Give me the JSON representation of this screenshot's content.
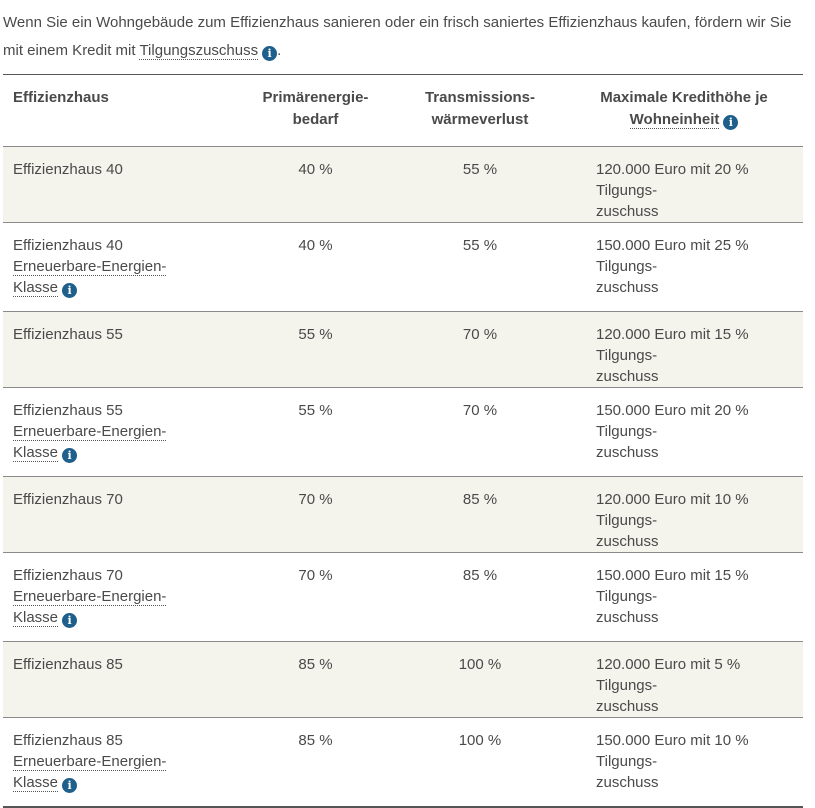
{
  "intro": {
    "text_before": "Wenn Sie ein Wohngebäude zum Effizienzhaus sanieren oder ein frisch saniertes Effizienzhaus kaufen, fördern wir Sie mit einem Kredit mit",
    "link_term": "Tilgungszuschuss",
    "text_after": "."
  },
  "table": {
    "headers": {
      "effizienzhaus": "Effizienzhaus",
      "primaer_line1": "Primärenergie-",
      "primaer_line2": "bedarf",
      "trans_line1": "Transmissions-",
      "trans_line2": "wärmeverlust",
      "kredit_line1": "Maximale Kredithöhe je",
      "kredit_term": "Wohneinheit"
    },
    "ee_label_line1": "Erneuerbare-Energien-",
    "ee_label_line2": "Klasse",
    "rows": [
      {
        "name": "Effizienzhaus 40",
        "primaer": "40 %",
        "trans": "55 %",
        "kredit_line1": "120.000 Euro mit 20 % Tilgungs-",
        "kredit_line2": "zuschuss"
      },
      {
        "name": "Effizienzhaus 40",
        "primaer": "40 %",
        "trans": "55 %",
        "kredit_line1": "150.000 Euro mit 25 % Tilgungs-",
        "kredit_line2": "zuschuss"
      },
      {
        "name": "Effizienzhaus 55",
        "primaer": "55 %",
        "trans": "70 %",
        "kredit_line1": "120.000 Euro mit 15 % Tilgungs-",
        "kredit_line2": "zuschuss"
      },
      {
        "name": "Effizienzhaus 55",
        "primaer": "55 %",
        "trans": "70 %",
        "kredit_line1": "150.000 Euro mit 20 % Tilgungs-",
        "kredit_line2": "zuschuss"
      },
      {
        "name": "Effizienzhaus 70",
        "primaer": "70 %",
        "trans": "85 %",
        "kredit_line1": "120.000 Euro mit 10 % Tilgungs-",
        "kredit_line2": "zuschuss"
      },
      {
        "name": "Effizienzhaus 70",
        "primaer": "70 %",
        "trans": "85 %",
        "kredit_line1": "150.000 Euro mit 15 % Tilgungs-",
        "kredit_line2": "zuschuss"
      },
      {
        "name": "Effizienzhaus 85",
        "primaer": "85 %",
        "trans": "100 %",
        "kredit_line1": "120.000 Euro mit 5 % Tilgungs-",
        "kredit_line2": "zuschuss"
      },
      {
        "name": "Effizienzhaus 85",
        "primaer": "85 %",
        "trans": "100 %",
        "kredit_line1": "150.000 Euro mit 10 % Tilgungs-",
        "kredit_line2": "zuschuss"
      }
    ]
  },
  "icons": {
    "info_glyph": "i",
    "info_color": "#1f5f8b"
  },
  "colors": {
    "row_shade": "#f4f3ec",
    "text": "#4a4a4a"
  }
}
